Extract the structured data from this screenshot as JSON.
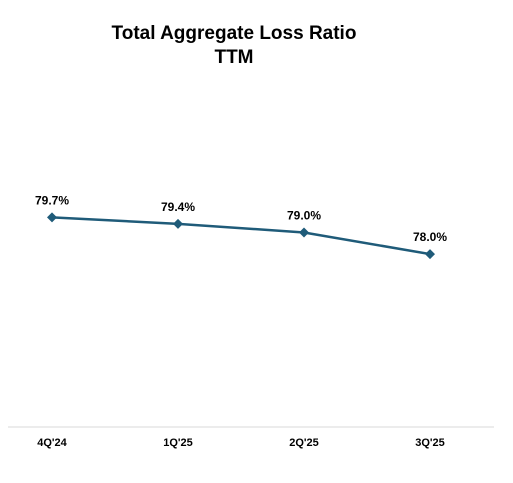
{
  "chart_data": {
    "type": "line",
    "title": "Total Aggregate Loss Ratio",
    "subtitle": "TTM",
    "categories": [
      "4Q'24",
      "1Q'25",
      "2Q'25",
      "3Q'25"
    ],
    "series": [
      {
        "values": [
          79.7,
          79.4,
          79.0,
          78.0
        ],
        "labels": [
          "79.7%",
          "79.4%",
          "79.0%",
          "78.0%"
        ]
      }
    ],
    "xlabel": "",
    "ylabel": "",
    "ylim": [
      70,
      83
    ],
    "grid": false,
    "legend": "none",
    "line_color": "#1F5B79",
    "axis_color": "#D9D9D9"
  }
}
